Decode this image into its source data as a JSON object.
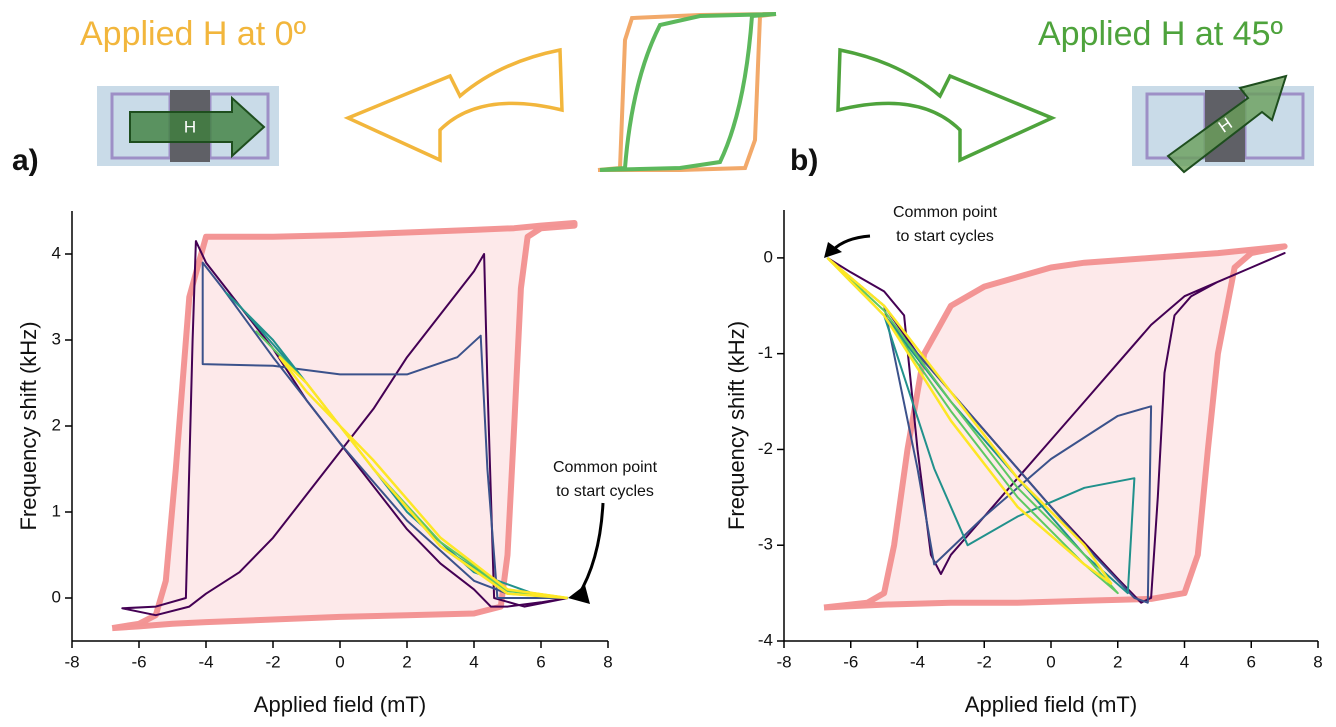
{
  "header": {
    "left_title": "Applied H at 0º",
    "right_title": "Applied H at 45º",
    "left_arrow_label": "H",
    "right_arrow_label": "H"
  },
  "chart_data": [
    {
      "type": "line",
      "label": "a)",
      "xlabel": "Applied field (mT)",
      "ylabel": "Frequency shift (kHz)",
      "xlim": [
        -8,
        8
      ],
      "xticks": [
        -8,
        -6,
        -4,
        -2,
        0,
        2,
        4,
        6,
        8
      ],
      "ylim": [
        -0.5,
        4.5
      ],
      "yticks": [
        0,
        1,
        2,
        3,
        4
      ],
      "annotation": [
        "Common point",
        "to start cycles"
      ],
      "series": [
        {
          "color": "#f28b8b",
          "fill": "#fde9ea",
          "width": 6,
          "x": [
            -6.8,
            -6,
            -5,
            -4,
            -2,
            0,
            2,
            4,
            4.8,
            5.0,
            5.2,
            5.4,
            5.6,
            6,
            7,
            7,
            6,
            5.2,
            4,
            2,
            0,
            -2,
            -4,
            -4.5,
            -4.9,
            -5.2,
            -5.5,
            -6,
            -6.8
          ],
          "values": [
            -0.35,
            -0.33,
            -0.3,
            -0.28,
            -0.25,
            -0.22,
            -0.2,
            -0.18,
            -0.1,
            0.5,
            2.0,
            3.6,
            4.2,
            4.3,
            4.33,
            4.36,
            4.33,
            4.3,
            4.28,
            4.25,
            4.22,
            4.2,
            4.2,
            3.5,
            1.5,
            0.2,
            -0.2,
            -0.3,
            -0.35
          ]
        },
        {
          "color": "#440154",
          "width": 2,
          "x": [
            6.8,
            6,
            5,
            4.5,
            4,
            3,
            2,
            1,
            0,
            -1,
            -2,
            -3,
            -4,
            -4.3,
            -4.4,
            -4.6,
            -5.5,
            -6.5,
            -5.5,
            -4.5,
            -4,
            -3,
            -2,
            -1,
            0,
            1,
            2,
            3,
            4,
            4.3,
            4.4,
            4.6,
            5.5,
            6.8
          ],
          "values": [
            0,
            -0.05,
            -0.1,
            -0.1,
            0.1,
            0.4,
            0.8,
            1.3,
            1.8,
            2.3,
            2.9,
            3.4,
            3.9,
            4.15,
            3,
            0,
            -0.1,
            -0.12,
            -0.2,
            -0.1,
            0.05,
            0.3,
            0.7,
            1.2,
            1.7,
            2.2,
            2.8,
            3.3,
            3.8,
            4.0,
            2.5,
            0,
            -0.1,
            0
          ]
        },
        {
          "color": "#3b528b",
          "width": 2,
          "x": [
            6.8,
            5,
            4,
            2,
            0,
            -2,
            -3.5,
            -4.1,
            -4.1,
            -2,
            0,
            2,
            3.5,
            4.2,
            4.4,
            4.7,
            6.8
          ],
          "values": [
            0,
            0.05,
            0.2,
            0.9,
            1.8,
            2.8,
            3.6,
            3.9,
            2.72,
            2.7,
            2.6,
            2.6,
            2.8,
            3.05,
            1.5,
            0,
            0
          ]
        },
        {
          "color": "#21918c",
          "width": 2,
          "x": [
            6.8,
            5,
            3,
            1,
            -1,
            -3,
            -3.4,
            -2,
            0,
            2,
            4,
            6,
            6.8
          ],
          "values": [
            0,
            0.1,
            0.6,
            1.5,
            2.5,
            3.4,
            3.55,
            3.0,
            2.0,
            1.0,
            0.3,
            0.02,
            0
          ]
        },
        {
          "color": "#5ec962",
          "width": 2,
          "x": [
            6.8,
            5,
            3,
            1,
            -1,
            -2.5,
            -1,
            1,
            3,
            5,
            6.8
          ],
          "values": [
            0,
            0.08,
            0.6,
            1.5,
            2.5,
            3.1,
            2.5,
            1.5,
            0.65,
            0.1,
            0
          ]
        },
        {
          "color": "#fde725",
          "width": 2.5,
          "x": [
            6.8,
            5,
            3,
            1,
            -1,
            -1.8,
            -1,
            1,
            3,
            5,
            6.8
          ],
          "values": [
            0,
            0.05,
            0.6,
            1.5,
            2.5,
            2.8,
            2.4,
            1.6,
            0.7,
            0.1,
            0
          ]
        }
      ]
    },
    {
      "type": "line",
      "label": "b)",
      "xlabel": "Applied field (mT)",
      "ylabel": "Frequency shift (kHz)",
      "xlim": [
        -8,
        8
      ],
      "xticks": [
        -8,
        -6,
        -4,
        -2,
        0,
        2,
        4,
        6,
        8
      ],
      "ylim": [
        -4,
        0.5
      ],
      "yticks": [
        -4,
        -3,
        -2,
        -1,
        0
      ],
      "annotation": [
        "Common point",
        "to start cycles"
      ],
      "series": [
        {
          "color": "#f28b8b",
          "fill": "#fde9ea",
          "width": 6,
          "x": [
            -6.8,
            -5,
            -3,
            -1,
            1,
            3,
            4,
            4.4,
            4.7,
            5,
            5.5,
            6,
            7,
            7,
            5,
            3,
            1,
            0,
            -2,
            -3,
            -3.8,
            -4.3,
            -4.7,
            -5,
            -5.5,
            -6.8
          ],
          "values": [
            -3.65,
            -3.62,
            -3.6,
            -3.6,
            -3.58,
            -3.56,
            -3.5,
            -3.1,
            -2.0,
            -1.0,
            -0.1,
            0.05,
            0.12,
            0.12,
            0.05,
            0,
            -0.05,
            -0.1,
            -0.3,
            -0.5,
            -1.0,
            -2.0,
            -3.0,
            -3.5,
            -3.6,
            -3.65
          ]
        },
        {
          "color": "#440154",
          "width": 2,
          "x": [
            -6.7,
            -5,
            -4,
            -2,
            0,
            2,
            2.7,
            3.0,
            3.2,
            3.4,
            3.7,
            4.2,
            5,
            6,
            7,
            6,
            5,
            4,
            3,
            2,
            1,
            0,
            -1,
            -2,
            -3,
            -3.3,
            -3.6,
            -4,
            -4.4,
            -5,
            -6,
            -6.7
          ],
          "values": [
            0,
            -0.5,
            -1.0,
            -1.8,
            -2.6,
            -3.35,
            -3.6,
            -3.55,
            -2.5,
            -1.2,
            -0.6,
            -0.4,
            -0.25,
            -0.1,
            0.05,
            -0.1,
            -0.25,
            -0.4,
            -0.7,
            -1.1,
            -1.5,
            -1.9,
            -2.3,
            -2.7,
            -3.1,
            -3.3,
            -3.1,
            -2.0,
            -0.6,
            -0.35,
            -0.15,
            0
          ]
        },
        {
          "color": "#3b528b",
          "width": 2,
          "x": [
            -6.7,
            -5,
            -3,
            -1,
            1,
            2.5,
            2.9,
            3.0,
            2,
            0,
            -2,
            -3.5,
            -4,
            -5,
            -6.7
          ],
          "values": [
            0,
            -0.6,
            -1.4,
            -2.2,
            -3.0,
            -3.55,
            -3.6,
            -1.55,
            -1.65,
            -2.1,
            -2.7,
            -3.2,
            -2.2,
            -0.5,
            0
          ]
        },
        {
          "color": "#21918c",
          "width": 2,
          "x": [
            -6.7,
            -5,
            -3,
            -1,
            1,
            2.3,
            2.5,
            1,
            -1,
            -2.5,
            -3.5,
            -5,
            -6.7
          ],
          "values": [
            0,
            -0.6,
            -1.5,
            -2.3,
            -3.1,
            -3.5,
            -2.3,
            -2.4,
            -2.7,
            -3.0,
            -2.2,
            -0.6,
            0
          ]
        },
        {
          "color": "#5ec962",
          "width": 2,
          "x": [
            -6.7,
            -5,
            -3,
            -1,
            1,
            2.0,
            1,
            -1,
            -3,
            -5,
            -6.7
          ],
          "values": [
            0,
            -0.6,
            -1.6,
            -2.5,
            -3.2,
            -3.5,
            -3.1,
            -2.4,
            -1.5,
            -0.55,
            0
          ]
        },
        {
          "color": "#fde725",
          "width": 2.5,
          "x": [
            -6.7,
            -5,
            -3,
            -1,
            1,
            1.8,
            1,
            -1,
            -3,
            -5,
            -6.7
          ],
          "values": [
            0,
            -0.6,
            -1.7,
            -2.6,
            -3.2,
            -3.4,
            -3.0,
            -2.3,
            -1.4,
            -0.5,
            0
          ]
        }
      ]
    }
  ]
}
